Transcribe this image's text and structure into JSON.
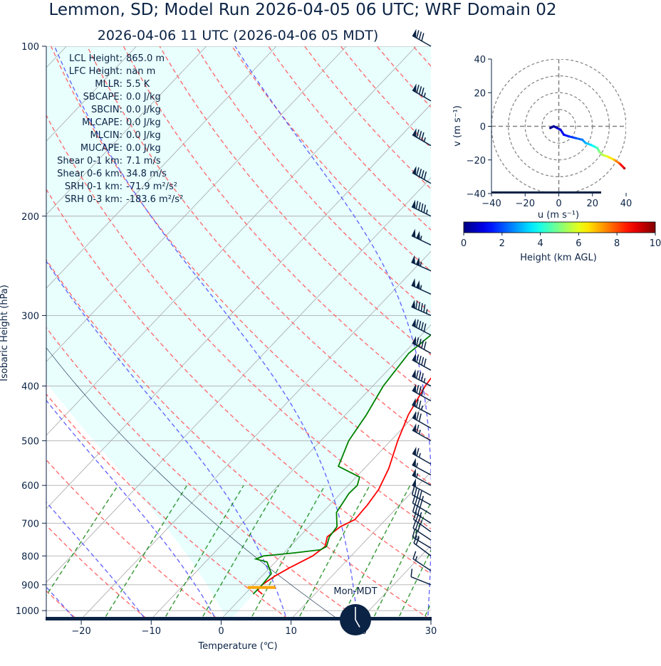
{
  "header": {
    "title": "Lemmon, SD; Model Run 2026-04-05 06 UTC; WRF Domain 02",
    "subtitle": "2026-04-06 11 UTC  (2026-04-06 05 MDT)"
  },
  "skewt": {
    "xlabel": "Temperature (℃)",
    "ylabel": "Isobaric Height (hPa)",
    "xticks": [
      -20,
      -10,
      0,
      10,
      20,
      30
    ],
    "yticks": [
      100,
      200,
      300,
      400,
      500,
      600,
      700,
      800,
      900,
      1000
    ],
    "xlim": [
      -25,
      30
    ],
    "ylim": [
      1035,
      100
    ],
    "temperature": [
      {
        "p": 935,
        "t": 2.5
      },
      {
        "p": 920,
        "t": 1.3
      },
      {
        "p": 900,
        "t": 1.2
      },
      {
        "p": 870,
        "t": 1.8
      },
      {
        "p": 840,
        "t": 2.8
      },
      {
        "p": 800,
        "t": 4.5
      },
      {
        "p": 770,
        "t": 5.0
      },
      {
        "p": 740,
        "t": 4.0
      },
      {
        "p": 710,
        "t": 4.5
      },
      {
        "p": 690,
        "t": 5.6
      },
      {
        "p": 650,
        "t": 5.4
      },
      {
        "p": 610,
        "t": 4.9
      },
      {
        "p": 560,
        "t": 3.5
      },
      {
        "p": 500,
        "t": 1.0
      },
      {
        "p": 450,
        "t": -1.0
      },
      {
        "p": 400,
        "t": -2.5
      },
      {
        "p": 350,
        "t": -3.5
      },
      {
        "p": 300,
        "t": -4.8
      },
      {
        "p": 260,
        "t": -6.4
      },
      {
        "p": 240,
        "t": -7.6
      },
      {
        "p": 215,
        "t": -7.0
      },
      {
        "p": 200,
        "t": -5.0
      },
      {
        "p": 185,
        "t": -1.0
      },
      {
        "p": 170,
        "t": 4.0
      },
      {
        "p": 155,
        "t": 11.0
      },
      {
        "p": 140,
        "t": 16.0
      },
      {
        "p": 122,
        "t": 20.5
      },
      {
        "p": 110,
        "t": 22.5
      },
      {
        "p": 100,
        "t": 24.0
      }
    ],
    "dewpoint": [
      {
        "p": 935,
        "t": 1.2
      },
      {
        "p": 900,
        "t": 1.2
      },
      {
        "p": 860,
        "t": 1.0
      },
      {
        "p": 820,
        "t": -1.2
      },
      {
        "p": 810,
        "t": -3.2
      },
      {
        "p": 800,
        "t": -2.5
      },
      {
        "p": 790,
        "t": 1.5
      },
      {
        "p": 780,
        "t": 4.8
      },
      {
        "p": 770,
        "t": 5.2
      },
      {
        "p": 740,
        "t": 4.3
      },
      {
        "p": 710,
        "t": 4.0
      },
      {
        "p": 670,
        "t": 2.0
      },
      {
        "p": 620,
        "t": 1.2
      },
      {
        "p": 600,
        "t": 1.3
      },
      {
        "p": 580,
        "t": 0.5
      },
      {
        "p": 555,
        "t": -4.0
      },
      {
        "p": 500,
        "t": -6.0
      },
      {
        "p": 450,
        "t": -7.0
      },
      {
        "p": 400,
        "t": -8.5
      },
      {
        "p": 350,
        "t": -9.3
      },
      {
        "p": 320,
        "t": -8.5
      },
      {
        "p": 280,
        "t": -10.0
      },
      {
        "p": 250,
        "t": -11.0
      },
      {
        "p": 220,
        "t": -12.0
      },
      {
        "p": 195,
        "t": -12.0
      },
      {
        "p": 170,
        "t": -13.0
      },
      {
        "p": 150,
        "t": -13.5
      },
      {
        "p": 130,
        "t": -10.0
      },
      {
        "p": 112,
        "t": -6.0
      },
      {
        "p": 100,
        "t": -2.0
      }
    ],
    "lcl_marker": {
      "p": 910,
      "t_left": -0.5,
      "t_right": 3.5,
      "color": "#ffa500"
    }
  },
  "indices": [
    {
      "label": "LCL Height:",
      "value": "865.0 m"
    },
    {
      "label": "LFC Height:",
      "value": "nan m"
    },
    {
      "label": "MLLR:",
      "value": "5.5 K"
    },
    {
      "label": "SBCAPE:",
      "value": "0.0 J/kg"
    },
    {
      "label": "SBCIN:",
      "value": "0.0 J/kg"
    },
    {
      "label": "MLCAPE:",
      "value": "0.0 J/kg"
    },
    {
      "label": "MLCIN:",
      "value": "0.0 J/kg"
    },
    {
      "label": "MUCAPE:",
      "value": "0.0 J/kg"
    },
    {
      "label": "Shear 0-1 km:",
      "value": "7.1 m/s"
    },
    {
      "label": "Shear 0-6 km:",
      "value": "34.8 m/s"
    },
    {
      "label": "SRH 0-1 km:",
      "value": "-71.9 m²/s²"
    },
    {
      "label": "SRH 0-3 km:",
      "value": "-183.6 m²/s²"
    }
  ],
  "hodograph": {
    "xlabel": "u (m s⁻¹)",
    "ylabel": "v (m s⁻¹)",
    "xticks": [
      -40,
      -20,
      0,
      20,
      40
    ],
    "yticks": [
      40,
      20,
      0,
      -20,
      -40
    ],
    "lim": [
      -40,
      40
    ],
    "points": [
      {
        "u": -5,
        "v": -1,
        "h": 0.1
      },
      {
        "u": -3,
        "v": 0,
        "h": 0.3
      },
      {
        "u": -1,
        "v": -1,
        "h": 0.6
      },
      {
        "u": 1,
        "v": -2,
        "h": 0.9
      },
      {
        "u": 3,
        "v": -5,
        "h": 1.2
      },
      {
        "u": 6,
        "v": -6,
        "h": 1.6
      },
      {
        "u": 10,
        "v": -7,
        "h": 2.0
      },
      {
        "u": 14,
        "v": -8,
        "h": 2.5
      },
      {
        "u": 16,
        "v": -10,
        "h": 3.0
      },
      {
        "u": 19,
        "v": -11,
        "h": 3.5
      },
      {
        "u": 21,
        "v": -12,
        "h": 4.0
      },
      {
        "u": 23,
        "v": -13,
        "h": 4.5
      },
      {
        "u": 24,
        "v": -15,
        "h": 5.0
      },
      {
        "u": 26,
        "v": -17,
        "h": 5.5
      },
      {
        "u": 29,
        "v": -18,
        "h": 6.0
      },
      {
        "u": 33,
        "v": -20,
        "h": 7.0
      },
      {
        "u": 36,
        "v": -22,
        "h": 8.0
      },
      {
        "u": 39,
        "v": -25,
        "h": 9.5
      }
    ]
  },
  "colorbar": {
    "label": "Height (km AGL)",
    "ticks": [
      0,
      2,
      4,
      6,
      8,
      10
    ],
    "range": [
      0,
      10
    ]
  },
  "clock": {
    "label": "Mon-MDT",
    "hour": 5,
    "minute": 0,
    "color": "#0b2345"
  },
  "colors": {
    "temperature": "#ff0000",
    "dewpoint": "#008000",
    "dry_adiabat": "#ff5555",
    "moist_adiabat": "#4444ff",
    "mixing_ratio": "#008000",
    "cape_fill": "#e8fffe",
    "axis": "#0b2345"
  },
  "wind_barbs": [
    {
      "p": 100,
      "u": 35,
      "v": -20
    },
    {
      "p": 125,
      "u": 38,
      "v": -22
    },
    {
      "p": 150,
      "u": 38,
      "v": -22
    },
    {
      "p": 175,
      "u": 40,
      "v": -23
    },
    {
      "p": 200,
      "u": 45,
      "v": -22
    },
    {
      "p": 225,
      "u": 48,
      "v": -23
    },
    {
      "p": 250,
      "u": 50,
      "v": -22
    },
    {
      "p": 275,
      "u": 48,
      "v": -22
    },
    {
      "p": 300,
      "u": 45,
      "v": -20
    },
    {
      "p": 325,
      "u": 42,
      "v": -22
    },
    {
      "p": 350,
      "u": 40,
      "v": -22
    },
    {
      "p": 375,
      "u": 40,
      "v": -22
    },
    {
      "p": 400,
      "u": 38,
      "v": -20
    },
    {
      "p": 425,
      "u": 36,
      "v": -20
    },
    {
      "p": 450,
      "u": 34,
      "v": -18
    },
    {
      "p": 475,
      "u": 32,
      "v": -18
    },
    {
      "p": 500,
      "u": 30,
      "v": -17
    },
    {
      "p": 550,
      "u": 28,
      "v": -16
    },
    {
      "p": 575,
      "u": 26,
      "v": -14
    },
    {
      "p": 600,
      "u": 24,
      "v": -13
    },
    {
      "p": 625,
      "u": 22,
      "v": -12
    },
    {
      "p": 650,
      "u": 20,
      "v": -11
    },
    {
      "p": 675,
      "u": 18,
      "v": -11
    },
    {
      "p": 700,
      "u": 16,
      "v": -10
    },
    {
      "p": 725,
      "u": 14,
      "v": -10
    },
    {
      "p": 750,
      "u": 12,
      "v": -8
    },
    {
      "p": 775,
      "u": 10,
      "v": -6
    },
    {
      "p": 800,
      "u": 8,
      "v": -6
    },
    {
      "p": 850,
      "u": 6,
      "v": -4
    },
    {
      "p": 900,
      "u": 5,
      "v": -2
    }
  ]
}
